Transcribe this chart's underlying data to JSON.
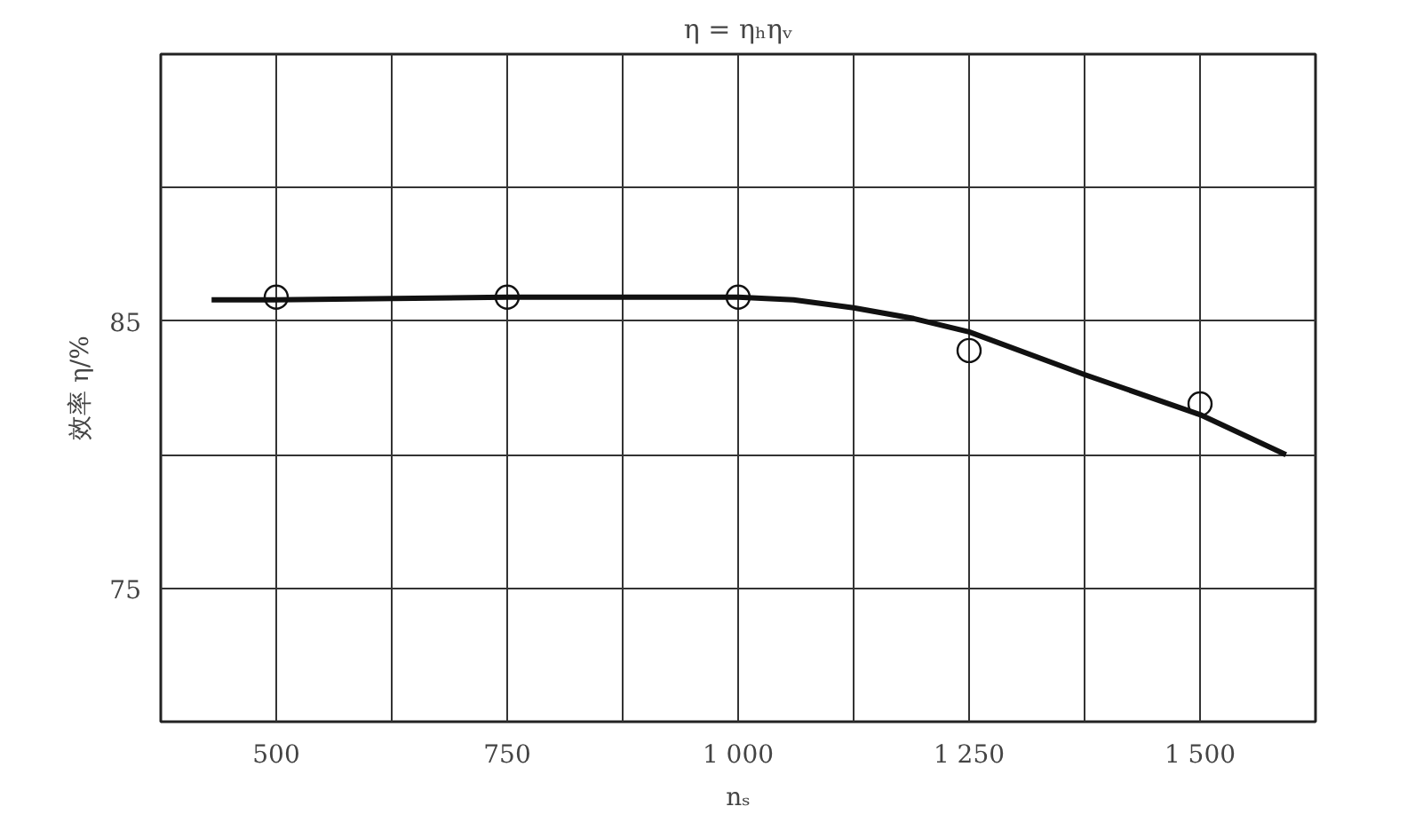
{
  "chart_data": {
    "type": "line",
    "title": "η = ηₕηᵥ",
    "xlabel": "nₛ",
    "ylabel": "效率 η/%",
    "xlim": [
      375,
      1625
    ],
    "ylim": [
      70,
      95
    ],
    "xticks": [
      {
        "value": 375,
        "label": null
      },
      500,
      {
        "value": 625,
        "label": null
      },
      750,
      {
        "value": 875,
        "label": null
      },
      {
        "value": 1000,
        "label": "1 000"
      },
      {
        "value": 1125,
        "label": null
      },
      {
        "value": 1250,
        "label": "1 250"
      },
      {
        "value": 1375,
        "label": null
      },
      {
        "value": 1500,
        "label": "1 500"
      },
      {
        "value": 1625,
        "label": null
      }
    ],
    "yticks": [
      {
        "value": 70,
        "label": null
      },
      75,
      {
        "value": 80,
        "label": null
      },
      85,
      {
        "value": 90,
        "label": null
      },
      {
        "value": 95,
        "label": null
      }
    ],
    "grid": true,
    "series": [
      {
        "color": "#111111",
        "marker": "none",
        "x": [
          430,
          500,
          750,
          1000,
          1060,
          1125,
          1190,
          1250,
          1375,
          1500,
          1593
        ],
        "values": [
          85.8,
          85.8,
          85.9,
          85.9,
          85.8,
          85.5,
          85.1,
          84.6,
          83.0,
          81.5,
          80.0
        ]
      },
      {
        "type": "scatter",
        "color": "#111111",
        "marker": "circle",
        "x": [
          500,
          750,
          1000,
          1250,
          1500
        ],
        "values": [
          85.9,
          85.9,
          85.9,
          83.9,
          81.9
        ]
      }
    ]
  }
}
